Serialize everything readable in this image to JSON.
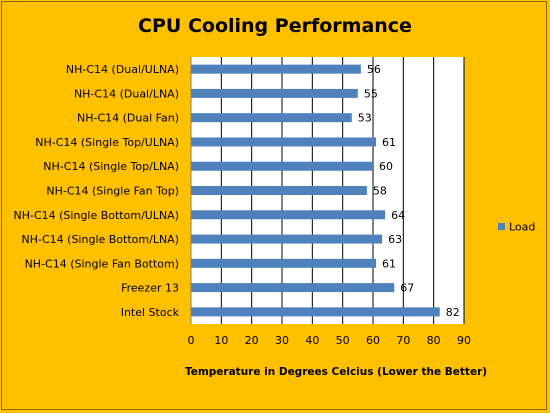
{
  "chart_data": {
    "type": "bar",
    "orientation": "horizontal",
    "title": "CPU Cooling Performance",
    "xlabel": "Temperature in Degrees Celcius (Lower the Better)",
    "ylabel": "",
    "xlim": [
      0,
      90
    ],
    "xticks": [
      0,
      10,
      20,
      30,
      40,
      50,
      60,
      70,
      80,
      90
    ],
    "grid": "vertical",
    "legend": "right",
    "categories": [
      "NH-C14 (Dual/ULNA)",
      "NH-C14 (Dual/LNA)",
      "NH-C14 (Dual Fan)",
      "NH-C14 (Single Top/ULNA)",
      "NH-C14 (Single Top/LNA)",
      "NH-C14 (Single Fan Top)",
      "NH-C14 (Single Bottom/ULNA)",
      "NH-C14 (Single Bottom/LNA)",
      "NH-C14 (Single Fan Bottom)",
      "Freezer 13",
      "Intel Stock"
    ],
    "series": [
      {
        "name": "Load",
        "color": "#4F81BD",
        "values": [
          56,
          55,
          53,
          61,
          60,
          58,
          64,
          63,
          61,
          67,
          82
        ]
      }
    ]
  }
}
